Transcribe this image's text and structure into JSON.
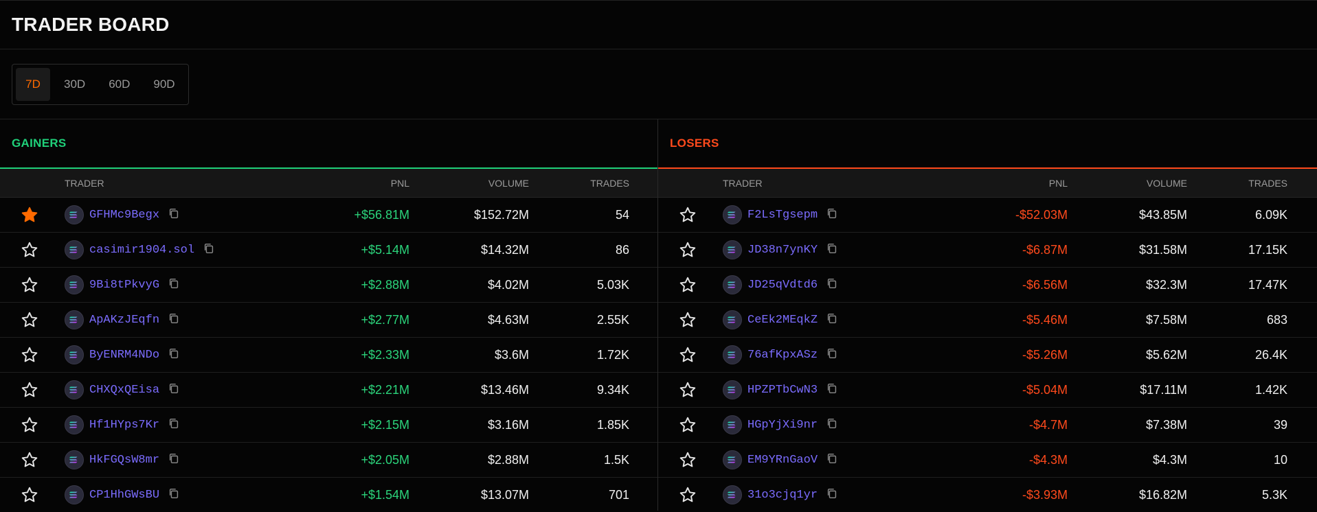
{
  "header": {
    "title": "TRADER BOARD"
  },
  "periods": {
    "selected": "7D",
    "options": [
      "7D",
      "30D",
      "60D",
      "90D"
    ]
  },
  "columns": {
    "star": "",
    "trader": "TRADER",
    "pnl": "PNL",
    "volume": "VOLUME",
    "trades": "TRADES"
  },
  "colors": {
    "accent": "#ff6a00",
    "gain": "#1fd17a",
    "loss": "#ff4a1c",
    "address": "#7b6cff"
  },
  "gainers": {
    "title": "GAINERS",
    "rows": [
      {
        "starred": true,
        "trader": "GFHMc9Begx",
        "pnl": "+$56.81M",
        "volume": "$152.72M",
        "trades": "54"
      },
      {
        "starred": false,
        "trader": "casimir1904.sol",
        "pnl": "+$5.14M",
        "volume": "$14.32M",
        "trades": "86"
      },
      {
        "starred": false,
        "trader": "9Bi8tPkvyG",
        "pnl": "+$2.88M",
        "volume": "$4.02M",
        "trades": "5.03K"
      },
      {
        "starred": false,
        "trader": "ApAKzJEqfn",
        "pnl": "+$2.77M",
        "volume": "$4.63M",
        "trades": "2.55K"
      },
      {
        "starred": false,
        "trader": "ByENRM4NDo",
        "pnl": "+$2.33M",
        "volume": "$3.6M",
        "trades": "1.72K"
      },
      {
        "starred": false,
        "trader": "CHXQxQEisa",
        "pnl": "+$2.21M",
        "volume": "$13.46M",
        "trades": "9.34K"
      },
      {
        "starred": false,
        "trader": "Hf1HYps7Kr",
        "pnl": "+$2.15M",
        "volume": "$3.16M",
        "trades": "1.85K"
      },
      {
        "starred": false,
        "trader": "HkFGQsW8mr",
        "pnl": "+$2.05M",
        "volume": "$2.88M",
        "trades": "1.5K"
      },
      {
        "starred": false,
        "trader": "CP1HhGWsBU",
        "pnl": "+$1.54M",
        "volume": "$13.07M",
        "trades": "701"
      }
    ]
  },
  "losers": {
    "title": "LOSERS",
    "rows": [
      {
        "starred": false,
        "trader": "F2LsTgsepm",
        "pnl": "-$52.03M",
        "volume": "$43.85M",
        "trades": "6.09K"
      },
      {
        "starred": false,
        "trader": "JD38n7ynKY",
        "pnl": "-$6.87M",
        "volume": "$31.58M",
        "trades": "17.15K"
      },
      {
        "starred": false,
        "trader": "JD25qVdtd6",
        "pnl": "-$6.56M",
        "volume": "$32.3M",
        "trades": "17.47K"
      },
      {
        "starred": false,
        "trader": "CeEk2MEqkZ",
        "pnl": "-$5.46M",
        "volume": "$7.58M",
        "trades": "683"
      },
      {
        "starred": false,
        "trader": "76afKpxASz",
        "pnl": "-$5.26M",
        "volume": "$5.62M",
        "trades": "26.4K"
      },
      {
        "starred": false,
        "trader": "HPZPTbCwN3",
        "pnl": "-$5.04M",
        "volume": "$17.11M",
        "trades": "1.42K"
      },
      {
        "starred": false,
        "trader": "HGpYjXi9nr",
        "pnl": "-$4.7M",
        "volume": "$7.38M",
        "trades": "39"
      },
      {
        "starred": false,
        "trader": "EM9YRnGaoV",
        "pnl": "-$4.3M",
        "volume": "$4.3M",
        "trades": "10"
      },
      {
        "starred": false,
        "trader": "31o3cjq1yr",
        "pnl": "-$3.93M",
        "volume": "$16.82M",
        "trades": "5.3K"
      }
    ]
  },
  "icons": {
    "star": "star-icon",
    "token": "solana-icon",
    "copy": "copy-icon"
  }
}
